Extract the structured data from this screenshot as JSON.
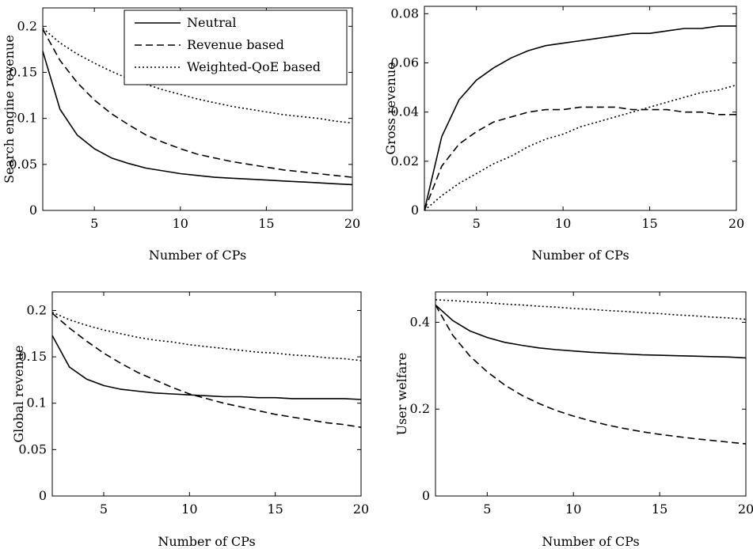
{
  "chart_data": [
    {
      "type": "line",
      "xlabel": "Number of CPs",
      "ylabel": "Search engine revenue",
      "xlim": [
        2,
        20
      ],
      "ylim": [
        0,
        0.22
      ],
      "xticks": [
        "5",
        "10",
        "15",
        "20"
      ],
      "xtick_values": [
        5,
        10,
        15,
        20
      ],
      "yticks": [
        "0",
        "0.05",
        "0.1",
        "0.15",
        "0.2"
      ],
      "ytick_values": [
        0,
        0.05,
        0.1,
        0.15,
        0.2
      ],
      "legend": "top-right",
      "series": [
        {
          "name": "Neutral",
          "style": "solid",
          "x": [
            2,
            3,
            4,
            5,
            6,
            7,
            8,
            9,
            10,
            11,
            12,
            13,
            14,
            15,
            16,
            17,
            18,
            19,
            20
          ],
          "values": [
            0.173,
            0.11,
            0.082,
            0.067,
            0.057,
            0.051,
            0.046,
            0.043,
            0.04,
            0.038,
            0.036,
            0.035,
            0.034,
            0.033,
            0.032,
            0.031,
            0.03,
            0.029,
            0.028
          ]
        },
        {
          "name": "Revenue based",
          "style": "dashed",
          "x": [
            2,
            3,
            4,
            5,
            6,
            7,
            8,
            9,
            10,
            11,
            12,
            13,
            14,
            15,
            16,
            17,
            18,
            19,
            20
          ],
          "values": [
            0.197,
            0.163,
            0.139,
            0.12,
            0.105,
            0.093,
            0.082,
            0.074,
            0.067,
            0.061,
            0.057,
            0.053,
            0.05,
            0.047,
            0.044,
            0.042,
            0.04,
            0.038,
            0.036
          ]
        },
        {
          "name": "Weighted-QoE based",
          "style": "dotted",
          "x": [
            2,
            3,
            4,
            5,
            6,
            7,
            8,
            9,
            10,
            11,
            12,
            13,
            14,
            15,
            16,
            17,
            18,
            19,
            20
          ],
          "values": [
            0.198,
            0.182,
            0.17,
            0.16,
            0.151,
            0.143,
            0.137,
            0.131,
            0.126,
            0.121,
            0.117,
            0.113,
            0.11,
            0.107,
            0.104,
            0.102,
            0.1,
            0.097,
            0.095
          ]
        }
      ]
    },
    {
      "type": "line",
      "xlabel": "Number of CPs",
      "ylabel": "Gross revenue",
      "xlim": [
        2,
        20
      ],
      "ylim": [
        0,
        0.083
      ],
      "xticks": [
        "5",
        "10",
        "15",
        "20"
      ],
      "xtick_values": [
        5,
        10,
        15,
        20
      ],
      "yticks": [
        "0",
        "0.02",
        "0.04",
        "0.06",
        "0.08"
      ],
      "ytick_values": [
        0,
        0.02,
        0.04,
        0.06,
        0.08
      ],
      "series": [
        {
          "name": "Neutral",
          "style": "solid",
          "x": [
            2,
            3,
            4,
            5,
            6,
            7,
            8,
            9,
            10,
            11,
            12,
            13,
            14,
            15,
            16,
            17,
            18,
            19,
            20
          ],
          "values": [
            0.0,
            0.03,
            0.045,
            0.053,
            0.058,
            0.062,
            0.065,
            0.067,
            0.068,
            0.069,
            0.07,
            0.071,
            0.072,
            0.072,
            0.073,
            0.074,
            0.074,
            0.075,
            0.075
          ]
        },
        {
          "name": "Revenue based",
          "style": "dashed",
          "x": [
            2,
            3,
            4,
            5,
            6,
            7,
            8,
            9,
            10,
            11,
            12,
            13,
            14,
            15,
            16,
            17,
            18,
            19,
            20
          ],
          "values": [
            0.0,
            0.018,
            0.027,
            0.032,
            0.036,
            0.038,
            0.04,
            0.041,
            0.041,
            0.042,
            0.042,
            0.042,
            0.041,
            0.041,
            0.041,
            0.04,
            0.04,
            0.039,
            0.039
          ]
        },
        {
          "name": "Weighted-QoE based",
          "style": "dotted",
          "x": [
            2,
            3,
            4,
            5,
            6,
            7,
            8,
            9,
            10,
            11,
            12,
            13,
            14,
            15,
            16,
            17,
            18,
            19,
            20
          ],
          "values": [
            0.0,
            0.006,
            0.011,
            0.015,
            0.019,
            0.022,
            0.026,
            0.029,
            0.031,
            0.034,
            0.036,
            0.038,
            0.04,
            0.042,
            0.044,
            0.046,
            0.048,
            0.049,
            0.051
          ]
        }
      ]
    },
    {
      "type": "line",
      "xlabel": "Number of CPs",
      "ylabel": "Global revenue",
      "xlim": [
        2,
        20
      ],
      "ylim": [
        0,
        0.22
      ],
      "xticks": [
        "5",
        "10",
        "15",
        "20"
      ],
      "xtick_values": [
        5,
        10,
        15,
        20
      ],
      "yticks": [
        "0",
        "0.05",
        "0.1",
        "0.15",
        "0.2"
      ],
      "ytick_values": [
        0,
        0.05,
        0.1,
        0.15,
        0.2
      ],
      "series": [
        {
          "name": "Neutral",
          "style": "solid",
          "x": [
            2,
            3,
            4,
            5,
            6,
            7,
            8,
            9,
            10,
            11,
            12,
            13,
            14,
            15,
            16,
            17,
            18,
            19,
            20
          ],
          "values": [
            0.173,
            0.139,
            0.126,
            0.119,
            0.115,
            0.113,
            0.111,
            0.11,
            0.109,
            0.108,
            0.107,
            0.107,
            0.106,
            0.106,
            0.105,
            0.105,
            0.105,
            0.105,
            0.104
          ]
        },
        {
          "name": "Revenue based",
          "style": "dashed",
          "x": [
            2,
            3,
            4,
            5,
            6,
            7,
            8,
            9,
            10,
            11,
            12,
            13,
            14,
            15,
            16,
            17,
            18,
            19,
            20
          ],
          "values": [
            0.197,
            0.181,
            0.167,
            0.154,
            0.143,
            0.133,
            0.125,
            0.117,
            0.11,
            0.105,
            0.1,
            0.096,
            0.092,
            0.088,
            0.085,
            0.082,
            0.079,
            0.077,
            0.074
          ]
        },
        {
          "name": "Weighted-QoE based",
          "style": "dotted",
          "x": [
            2,
            3,
            4,
            5,
            6,
            7,
            8,
            9,
            10,
            11,
            12,
            13,
            14,
            15,
            16,
            17,
            18,
            19,
            20
          ],
          "values": [
            0.198,
            0.19,
            0.184,
            0.179,
            0.175,
            0.171,
            0.168,
            0.166,
            0.163,
            0.161,
            0.159,
            0.157,
            0.155,
            0.154,
            0.152,
            0.151,
            0.149,
            0.148,
            0.146
          ]
        }
      ]
    },
    {
      "type": "line",
      "xlabel": "Number of CPs",
      "ylabel": "User welfare",
      "xlim": [
        2,
        20
      ],
      "ylim": [
        0,
        0.47
      ],
      "xticks": [
        "5",
        "10",
        "15",
        "20"
      ],
      "xtick_values": [
        5,
        10,
        15,
        20
      ],
      "yticks": [
        "0",
        "0.2",
        "0.4"
      ],
      "ytick_values": [
        0,
        0.2,
        0.4
      ],
      "series": [
        {
          "name": "Neutral",
          "style": "solid",
          "x": [
            2,
            3,
            4,
            5,
            6,
            7,
            8,
            9,
            10,
            11,
            12,
            13,
            14,
            15,
            16,
            17,
            18,
            19,
            20
          ],
          "values": [
            0.44,
            0.404,
            0.38,
            0.365,
            0.354,
            0.347,
            0.341,
            0.337,
            0.334,
            0.331,
            0.329,
            0.327,
            0.325,
            0.324,
            0.323,
            0.322,
            0.321,
            0.32,
            0.318
          ]
        },
        {
          "name": "Revenue based",
          "style": "dashed",
          "x": [
            2,
            3,
            4,
            5,
            6,
            7,
            8,
            9,
            10,
            11,
            12,
            13,
            14,
            15,
            16,
            17,
            18,
            19,
            20
          ],
          "values": [
            0.44,
            0.37,
            0.322,
            0.286,
            0.256,
            0.232,
            0.213,
            0.197,
            0.184,
            0.173,
            0.163,
            0.155,
            0.148,
            0.142,
            0.137,
            0.132,
            0.128,
            0.124,
            0.12
          ]
        },
        {
          "name": "Weighted-QoE based",
          "style": "dotted",
          "x": [
            2,
            3,
            4,
            5,
            6,
            7,
            8,
            9,
            10,
            11,
            12,
            13,
            14,
            15,
            16,
            17,
            18,
            19,
            20
          ],
          "values": [
            0.452,
            0.45,
            0.447,
            0.445,
            0.442,
            0.44,
            0.437,
            0.435,
            0.432,
            0.43,
            0.427,
            0.425,
            0.422,
            0.42,
            0.417,
            0.415,
            0.412,
            0.41,
            0.407
          ]
        }
      ]
    }
  ]
}
